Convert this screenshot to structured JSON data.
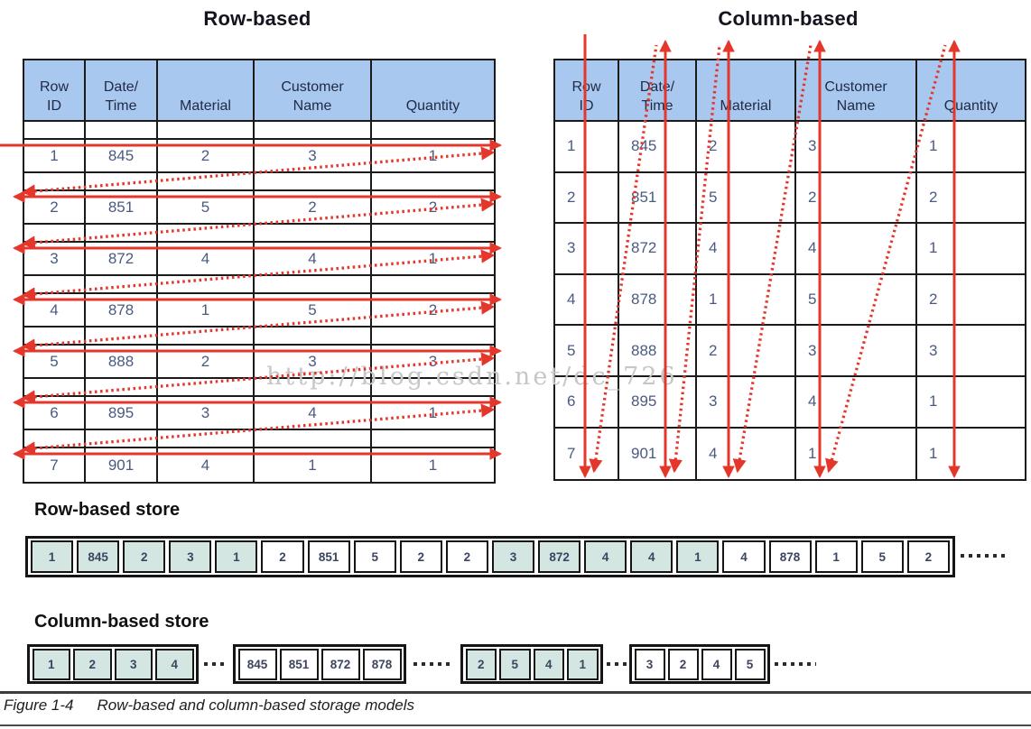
{
  "titles": {
    "left": "Row-based",
    "right": "Column-based"
  },
  "table": {
    "headers": [
      [
        "Row",
        "ID"
      ],
      [
        "Date/",
        "Time"
      ],
      [
        "Material"
      ],
      [
        "Customer",
        "Name"
      ],
      [
        "Quantity"
      ]
    ],
    "rows": [
      [
        1,
        845,
        2,
        3,
        1
      ],
      [
        2,
        851,
        5,
        2,
        2
      ],
      [
        3,
        872,
        4,
        4,
        1
      ],
      [
        4,
        878,
        1,
        5,
        2
      ],
      [
        5,
        888,
        2,
        3,
        3
      ],
      [
        6,
        895,
        3,
        4,
        1
      ],
      [
        7,
        901,
        4,
        1,
        1
      ]
    ]
  },
  "row_store": {
    "heading": "Row-based store",
    "groups": [
      {
        "values": [
          1,
          845,
          2,
          3,
          1
        ],
        "highlight": true
      },
      {
        "values": [
          2,
          851,
          5,
          2,
          2
        ],
        "highlight": false
      },
      {
        "values": [
          3,
          872,
          4,
          4,
          1
        ],
        "highlight": true
      },
      {
        "values": [
          4,
          878,
          1,
          5,
          2
        ],
        "highlight": false
      }
    ]
  },
  "column_store": {
    "heading": "Column-based store",
    "groups": [
      {
        "values": [
          1,
          2,
          3,
          4
        ],
        "highlight": true
      },
      {
        "values": [
          845,
          851,
          872,
          878
        ],
        "highlight": false
      },
      {
        "values": [
          2,
          5,
          4,
          1
        ],
        "highlight": true
      },
      {
        "values": [
          3,
          2,
          4,
          5
        ],
        "highlight": false
      }
    ]
  },
  "caption": {
    "label": "Figure 1-4",
    "text": "Row-based and column-based storage models"
  },
  "watermark": "http://blog.csdn.net/dc_726",
  "colors": {
    "arrow": "#e5362b",
    "header_fill": "#a8c8f0",
    "highlight_fill": "#d3e6e2",
    "border": "#1a1a1a"
  }
}
